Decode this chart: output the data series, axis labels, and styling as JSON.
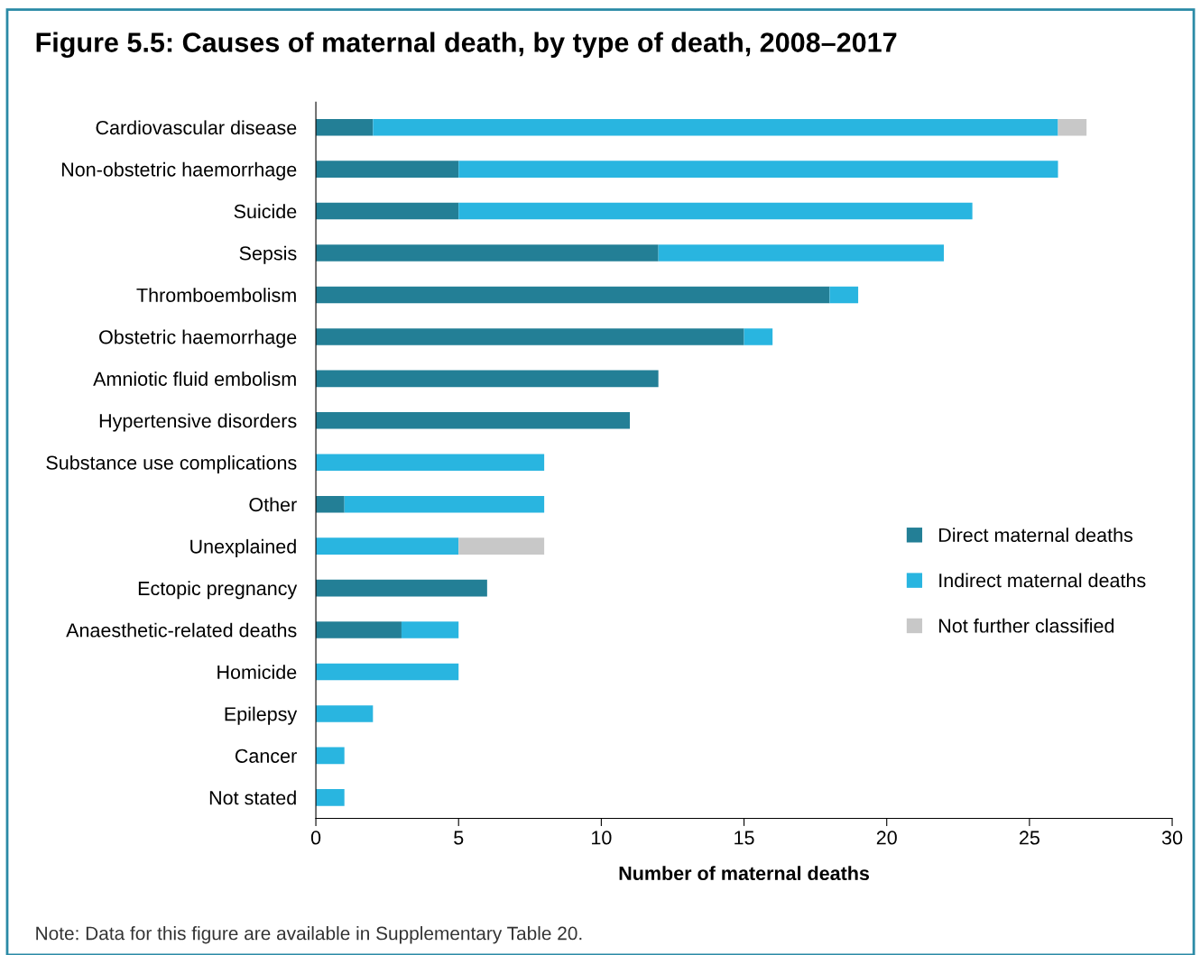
{
  "chart_data": {
    "type": "bar",
    "orientation": "horizontal",
    "stacked": true,
    "title": "Figure 5.5: Causes of maternal death, by type of death, 2008–2017",
    "xlabel": "Number of maternal deaths",
    "categories": [
      "Cardiovascular disease",
      "Non-obstetric haemorrhage",
      "Suicide",
      "Sepsis",
      "Thromboembolism",
      "Obstetric haemorrhage",
      "Amniotic fluid embolism",
      "Hypertensive disorders",
      "Substance use complications",
      "Other",
      "Unexplained",
      "Ectopic pregnancy",
      "Anaesthetic-related deaths",
      "Homicide",
      "Epilepsy",
      "Cancer",
      "Not stated"
    ],
    "series": [
      {
        "name": "Direct maternal deaths",
        "color": "#237f96",
        "values": [
          2,
          5,
          5,
          12,
          18,
          15,
          12,
          11,
          0,
          1,
          0,
          6,
          3,
          0,
          0,
          0,
          0
        ]
      },
      {
        "name": "Indirect maternal deaths",
        "color": "#29b5e0",
        "values": [
          24,
          21,
          18,
          10,
          1,
          1,
          0,
          0,
          8,
          7,
          5,
          0,
          2,
          5,
          2,
          1,
          1
        ]
      },
      {
        "name": "Not further classified",
        "color": "#c8c8c8",
        "values": [
          1,
          0,
          0,
          0,
          0,
          0,
          0,
          0,
          0,
          0,
          3,
          0,
          0,
          0,
          0,
          0,
          0
        ]
      }
    ],
    "xlim": [
      0,
      30
    ],
    "xticks": [
      0,
      5,
      10,
      15,
      20,
      25,
      30
    ],
    "grid": false,
    "legend": "right",
    "annotations": [
      "Note: Data for this figure are available in Supplementary Table 20."
    ]
  }
}
